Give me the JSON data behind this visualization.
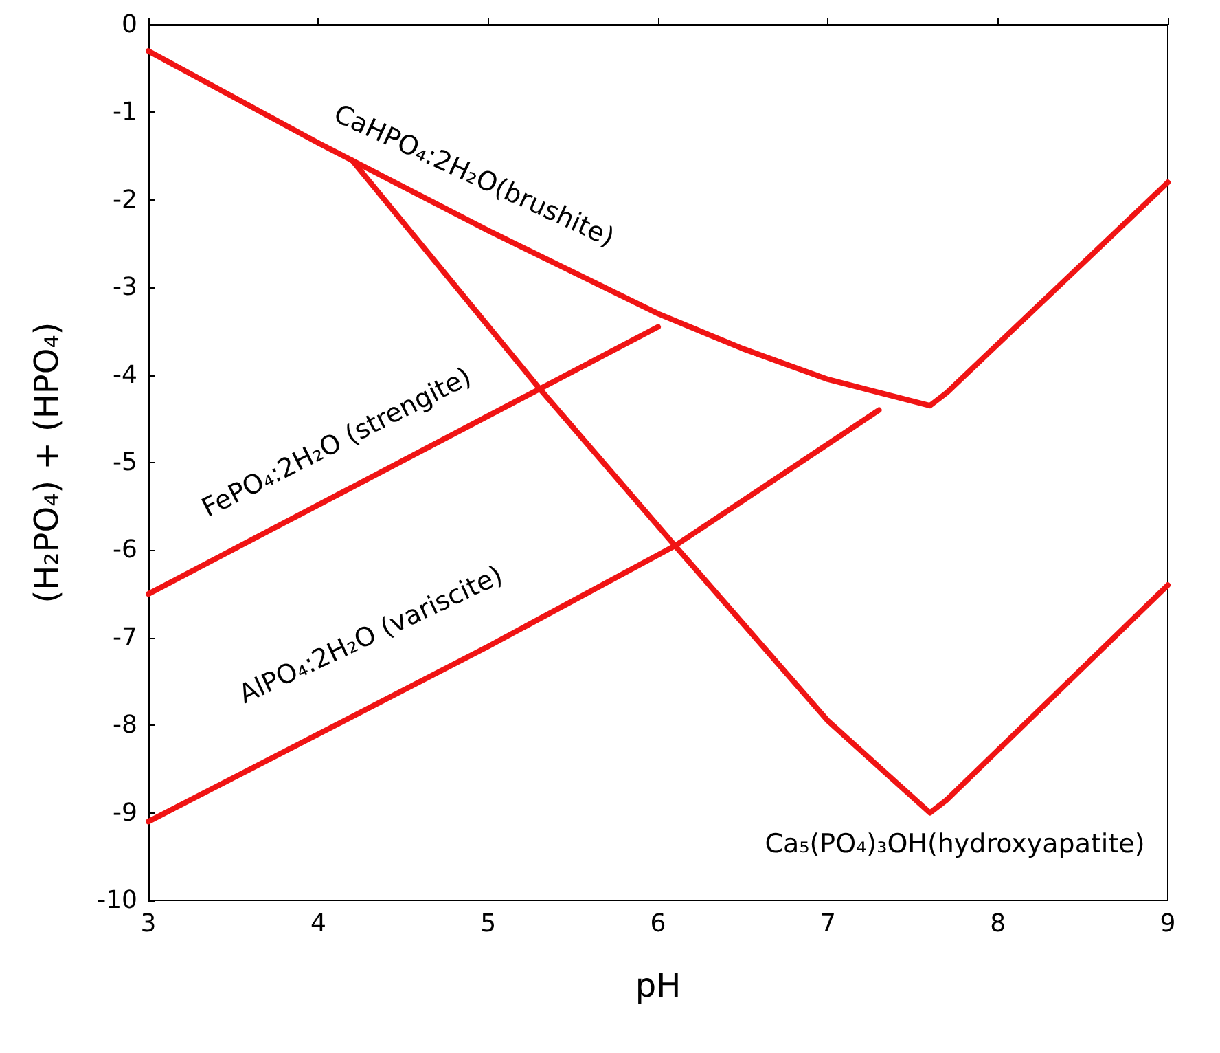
{
  "chart_data": {
    "type": "line",
    "xlabel": "pH",
    "ylabel": "(H₂PO₄) + (HPO₄)",
    "xlim": [
      3,
      9
    ],
    "xticks": [
      3,
      4,
      5,
      6,
      7,
      8,
      9
    ],
    "ylim": [
      -10,
      0
    ],
    "yticks": [
      -10,
      -9,
      -8,
      -7,
      -6,
      -5,
      -4,
      -3,
      -2,
      -1,
      0
    ],
    "grid": false,
    "marker": "none",
    "line_style": "solid",
    "series": [
      {
        "color": "#f01414",
        "x": [
          3,
          4,
          5,
          6,
          6.5,
          7,
          7.6,
          7.7,
          9
        ],
        "values": [
          -0.3,
          -1.35,
          -2.35,
          -3.3,
          -3.7,
          -4.05,
          -4.35,
          -4.2,
          -1.8
        ]
      },
      {
        "color": "#f01414",
        "x": [
          4.2,
          5.3,
          6.1,
          7,
          7.6,
          7.7,
          9
        ],
        "values": [
          -1.55,
          -4.15,
          -5.95,
          -7.95,
          -9,
          -8.85,
          -6.4
        ]
      },
      {
        "color": "#f01414",
        "x": [
          3,
          6
        ],
        "values": [
          -6.5,
          -3.45
        ]
      },
      {
        "color": "#f01414",
        "x": [
          3,
          5,
          6.1,
          7.3
        ],
        "values": [
          -9.1,
          -7.1,
          -5.95,
          -4.4
        ]
      }
    ],
    "annotations": [
      "CaHPO₄:2H₂O(brushite)",
      "FePO₄:2H₂O (strengite)",
      "AlPO₄:2H₂O (variscite)",
      "Ca₅(PO₄)₃OH(hydroxyapatite)"
    ]
  }
}
